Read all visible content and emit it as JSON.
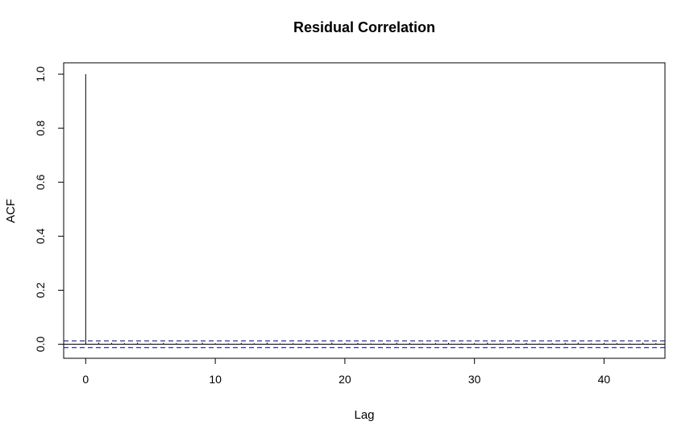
{
  "chart_data": {
    "type": "bar",
    "title": "Residual Correlation",
    "xlabel": "Lag",
    "ylabel": "ACF",
    "xlim": [
      -1.7,
      44.7
    ],
    "ylim": [
      -0.052,
      1.042
    ],
    "xticks": [
      0,
      10,
      20,
      30,
      40
    ],
    "yticks": [
      0.0,
      0.2,
      0.4,
      0.6,
      0.8,
      1.0
    ],
    "xtick_labels": [
      "0",
      "10",
      "20",
      "30",
      "40"
    ],
    "ytick_labels": [
      "0.0",
      "0.2",
      "0.4",
      "0.6",
      "0.8",
      "1.0"
    ],
    "confidence_bounds": [
      0.0125,
      -0.0125
    ],
    "grid": false,
    "legend": "none",
    "line_color": "#000000",
    "bound_color": "#00008b",
    "series": [
      {
        "lags": [
          0,
          1,
          2,
          3,
          4,
          5,
          6,
          7,
          8,
          9,
          10,
          11,
          12,
          13,
          14,
          15,
          16,
          17,
          18,
          19,
          20,
          21,
          22,
          23,
          24,
          25,
          26,
          27,
          28,
          29,
          30,
          31,
          32,
          33,
          34,
          35,
          36,
          37,
          38,
          39,
          40,
          41,
          42,
          43,
          44
        ],
        "values": [
          1.0,
          0.006,
          0.005,
          0.004,
          0.006,
          0.003,
          0.005,
          0.004,
          0.003,
          0.006,
          0.004,
          0.003,
          0.005,
          0.004,
          0.006,
          0.003,
          0.004,
          0.005,
          0.003,
          0.006,
          0.004,
          0.005,
          0.003,
          0.004,
          0.006,
          0.005,
          0.003,
          0.004,
          0.005,
          0.003,
          0.004,
          0.006,
          0.003,
          0.004,
          0.005,
          0.003,
          0.004,
          0.005,
          0.006,
          0.003,
          0.005,
          0.004,
          0.003,
          0.006,
          0.004
        ]
      }
    ]
  }
}
